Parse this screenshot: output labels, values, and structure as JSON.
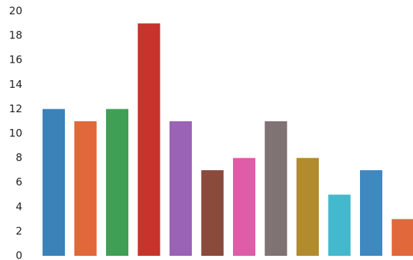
{
  "chart_data": {
    "type": "bar",
    "title": "",
    "xlabel": "",
    "ylabel": "",
    "ylim": [
      0,
      20
    ],
    "yticks": [
      0,
      2,
      4,
      6,
      8,
      10,
      12,
      14,
      16,
      18,
      20
    ],
    "grid": false,
    "legend": "none",
    "bars": [
      {
        "value": 12,
        "color": "#3b82b8"
      },
      {
        "value": 11,
        "color": "#e0683a"
      },
      {
        "value": 12,
        "color": "#3fa055"
      },
      {
        "value": 19,
        "color": "#c8332b"
      },
      {
        "value": 11,
        "color": "#9a63b6"
      },
      {
        "value": 7,
        "color": "#8a4a3c"
      },
      {
        "value": 8,
        "color": "#de5ca8"
      },
      {
        "value": 11,
        "color": "#7f7373"
      },
      {
        "value": 8,
        "color": "#b28b2e"
      },
      {
        "value": 5,
        "color": "#44b8cc"
      },
      {
        "value": 7,
        "color": "#3f88c0"
      },
      {
        "value": 3,
        "color": "#e0683a"
      }
    ]
  }
}
